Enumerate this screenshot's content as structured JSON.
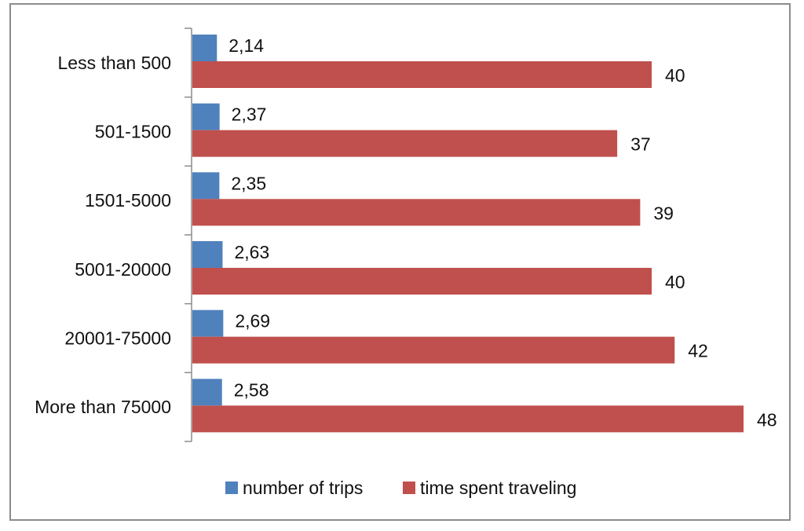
{
  "chart_data": {
    "type": "bar",
    "orientation": "horizontal",
    "categories": [
      "Less than 500",
      "501-1500",
      "1501-5000",
      "5001-20000",
      "20001-75000",
      "More than 75000"
    ],
    "series": [
      {
        "name": "number of trips",
        "values": [
          2.14,
          2.37,
          2.35,
          2.63,
          2.69,
          2.58
        ],
        "labels": [
          "2,14",
          "2,37",
          "2,35",
          "2,63",
          "2,69",
          "2,58"
        ],
        "color": "#4f81bd"
      },
      {
        "name": "time spent traveling",
        "values": [
          40,
          37,
          39,
          40,
          42,
          48
        ],
        "labels": [
          "40",
          "37",
          "39",
          "40",
          "42",
          "48"
        ],
        "color": "#c0504d"
      }
    ],
    "xlim": [
      0,
      48
    ],
    "grid": false,
    "legend_position": "bottom",
    "title": "",
    "xlabel": "",
    "ylabel": ""
  }
}
